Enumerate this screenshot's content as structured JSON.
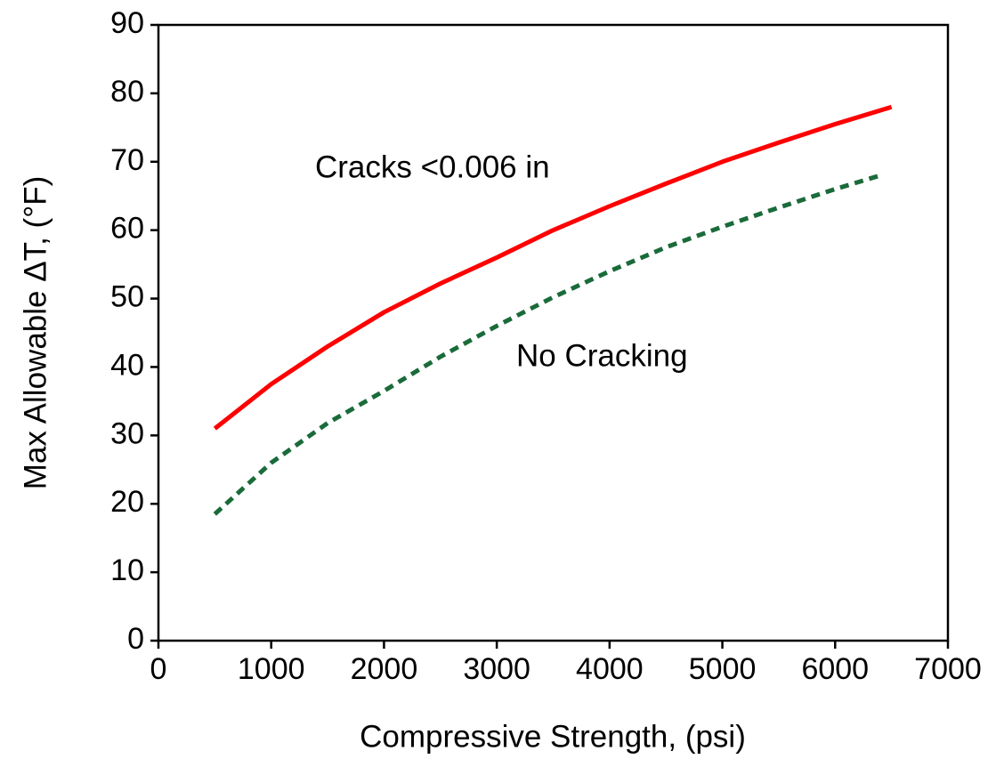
{
  "chart_data": {
    "type": "line",
    "x_label": "Compressive Strength, (psi)",
    "y_label": "Max Allowable ΔT, (°F)",
    "annotations": [
      "Cracks <0.006 in",
      "No Cracking"
    ],
    "xlim": [
      0,
      7000
    ],
    "ylim": [
      0,
      90
    ],
    "xticks": [
      0,
      1000,
      2000,
      3000,
      4000,
      5000,
      6000,
      7000
    ],
    "yticks": [
      0,
      10,
      20,
      30,
      40,
      50,
      60,
      70,
      80,
      90
    ],
    "grid": false,
    "series": [
      {
        "color": "#ff0000",
        "style": "solid",
        "x": [
          500,
          1000,
          1500,
          2000,
          2500,
          3000,
          3500,
          4000,
          4500,
          5000,
          5500,
          6000,
          6500
        ],
        "values": [
          31,
          37.5,
          43,
          48,
          52.2,
          56,
          60,
          63.5,
          66.8,
          70,
          72.8,
          75.5,
          78
        ]
      },
      {
        "color": "#1a6b3a",
        "style": "dashed",
        "x": [
          500,
          1000,
          1500,
          2000,
          2500,
          3000,
          3500,
          4000,
          4500,
          5000,
          5500,
          6000,
          6400
        ],
        "values": [
          18.5,
          26,
          31.8,
          36.5,
          41.5,
          46,
          50.2,
          54,
          57.5,
          60.5,
          63.3,
          66,
          68
        ]
      }
    ]
  }
}
